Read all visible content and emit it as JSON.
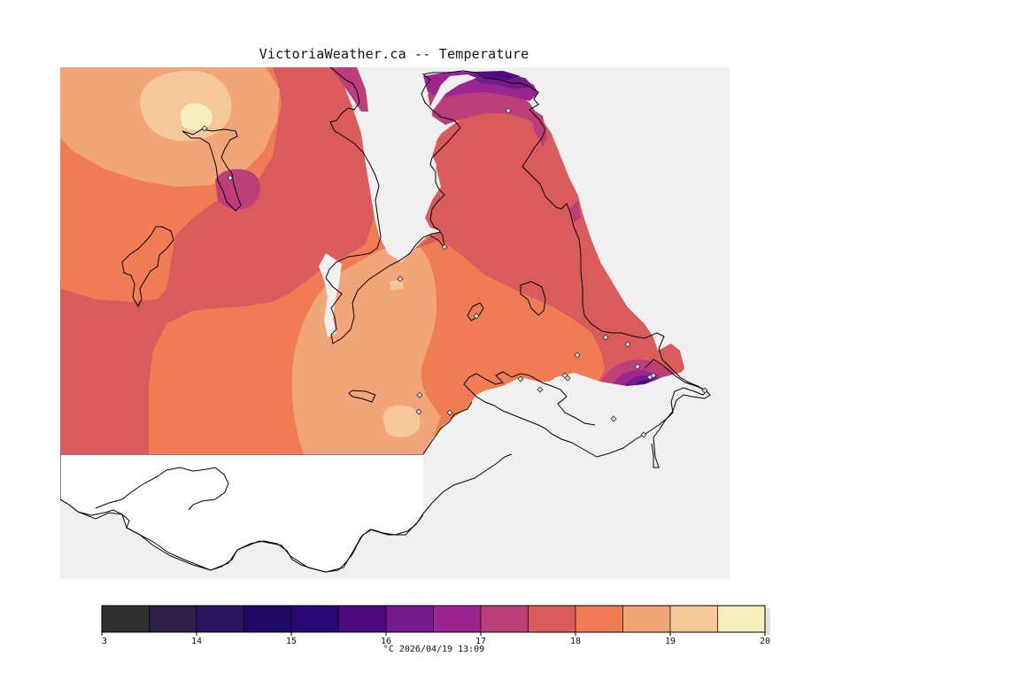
{
  "title": "VictoriaWeather.ca -- Temperature",
  "colors": {
    "background": "#f0f0f0",
    "land_outside_grid": "#ffffff",
    "station_marker_fill": "#d8d8d8",
    "coast_line": "#000000"
  },
  "legend": {
    "caption": "°C  2026/04/19 13:09",
    "ticks": [
      "13",
      "14",
      "15",
      "16",
      "17",
      "18",
      "19",
      "20"
    ],
    "bins": [
      {
        "from": 13.0,
        "to": 13.5,
        "color": "#303030"
      },
      {
        "from": 13.5,
        "to": 14.0,
        "color": "#2e1f48"
      },
      {
        "from": 14.0,
        "to": 14.5,
        "color": "#2a1660"
      },
      {
        "from": 14.5,
        "to": 15.0,
        "color": "#1e0a66"
      },
      {
        "from": 15.0,
        "to": 15.5,
        "color": "#2a0874"
      },
      {
        "from": 15.5,
        "to": 16.0,
        "color": "#4e0a7e"
      },
      {
        "from": 16.0,
        "to": 16.5,
        "color": "#751a8c"
      },
      {
        "from": 16.5,
        "to": 17.0,
        "color": "#9c2690"
      },
      {
        "from": 17.0,
        "to": 17.5,
        "color": "#bd3f7a"
      },
      {
        "from": 17.5,
        "to": 18.0,
        "color": "#da5b5c"
      },
      {
        "from": 18.0,
        "to": 18.5,
        "color": "#f07c54"
      },
      {
        "from": 18.5,
        "to": 19.0,
        "color": "#f2a578"
      },
      {
        "from": 19.0,
        "to": 19.5,
        "color": "#f5c799"
      },
      {
        "from": 19.5,
        "to": 20.0,
        "color": "#f5efbb"
      }
    ]
  },
  "stations_count": 22
}
